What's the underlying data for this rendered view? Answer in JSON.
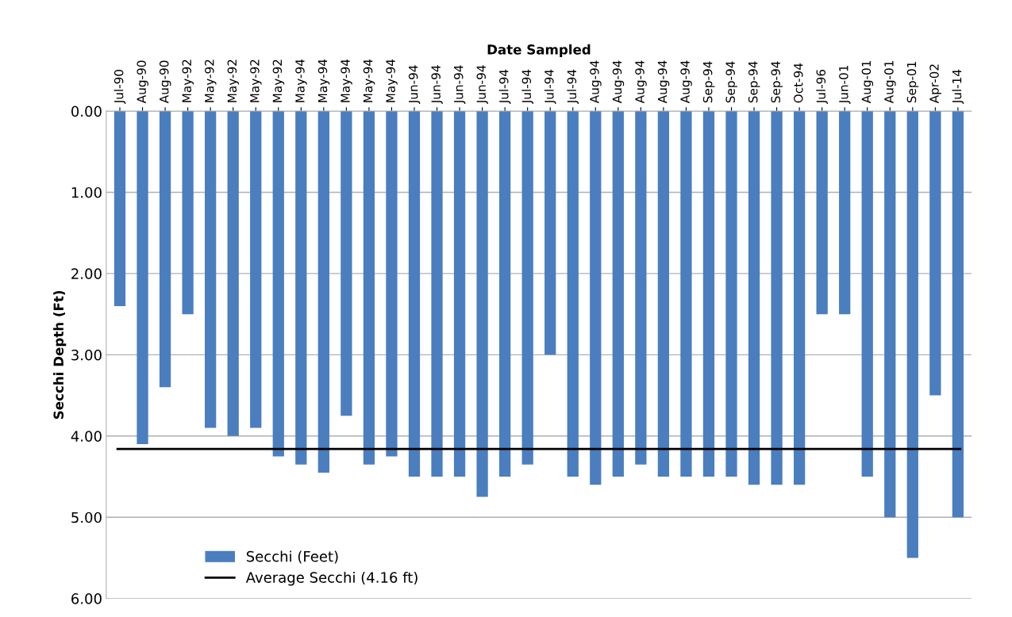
{
  "chart_data": {
    "type": "bar",
    "xlabel": "Date Sampled",
    "ylabel": "Secchi Depth (Ft)",
    "categories": [
      "Jul-90",
      "Aug-90",
      "Aug-90",
      "May-92",
      "May-92",
      "May-92",
      "May-92",
      "May-92",
      "May-94",
      "May-94",
      "May-94",
      "May-94",
      "May-94",
      "Jun-94",
      "Jun-94",
      "Jun-94",
      "Jun-94",
      "Jul-94",
      "Jul-94",
      "Jul-94",
      "Jul-94",
      "Aug-94",
      "Aug-94",
      "Aug-94",
      "Aug-94",
      "Aug-94",
      "Sep-94",
      "Sep-94",
      "Sep-94",
      "Sep-94",
      "Oct-94",
      "Jul-96",
      "Jun-01",
      "Aug-01",
      "Aug-01",
      "Sep-01",
      "Apr-02",
      "Jul-14"
    ],
    "series": [
      {
        "name": "Secchi (Feet)",
        "color": "#4a7ebf",
        "values": [
          2.4,
          4.1,
          3.4,
          2.5,
          3.9,
          4.0,
          3.9,
          4.25,
          4.35,
          4.45,
          3.75,
          4.35,
          4.25,
          4.5,
          4.5,
          4.5,
          4.75,
          4.5,
          4.35,
          3.0,
          4.5,
          4.6,
          4.5,
          4.35,
          4.5,
          4.5,
          4.5,
          4.5,
          4.6,
          4.6,
          4.6,
          2.5,
          2.5,
          4.5,
          5.0,
          5.5,
          3.5,
          5.0
        ]
      }
    ],
    "ylim": [
      6,
      0
    ],
    "yticks": [
      {
        "value": 0,
        "label": "0.00"
      },
      {
        "value": 1,
        "label": "1.00"
      },
      {
        "value": 2,
        "label": "2.00"
      },
      {
        "value": 3,
        "label": "3.00"
      },
      {
        "value": 4,
        "label": "4.00"
      },
      {
        "value": 5,
        "label": "5.00"
      },
      {
        "value": 6,
        "label": "6.00"
      }
    ],
    "ref_lines": [
      {
        "axis": "y",
        "value": 4.16,
        "label": "Average Secchi (4.16 ft)",
        "color": "#000000"
      }
    ],
    "grid": "y",
    "legend": "bottom left"
  }
}
